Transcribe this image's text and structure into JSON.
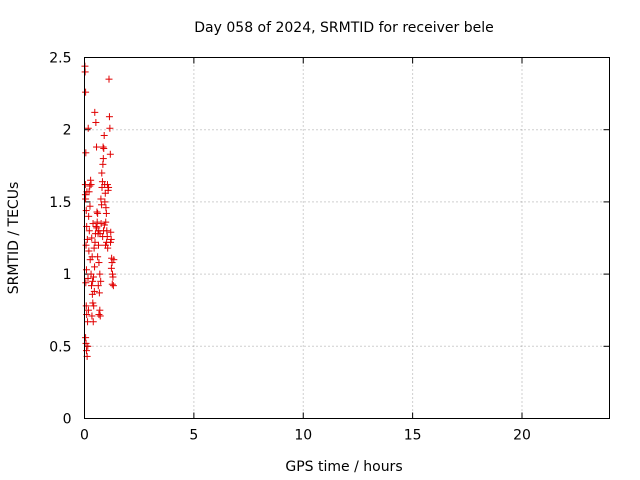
{
  "chart_data": {
    "type": "scatter",
    "title": "Day 058 of 2024, SRMTID for receiver bele",
    "xlabel": "GPS time / hours",
    "ylabel": "SRMTID / TECUs",
    "xlim": [
      0,
      24
    ],
    "ylim": [
      0,
      2.5
    ],
    "xticks": [
      0,
      5,
      10,
      15,
      20
    ],
    "yticks": [
      0,
      0.5,
      1,
      1.5,
      2,
      2.5
    ],
    "xtick_labels": [
      "0",
      "5",
      "10",
      "15",
      "20"
    ],
    "ytick_labels": [
      "0",
      "0.5",
      "1",
      "1.5",
      "2",
      "2.5"
    ],
    "grid": true,
    "marker": "+",
    "color": "#e00000",
    "series": [
      {
        "points": [
          [
            0.02,
            2.44
          ],
          [
            0.03,
            2.4
          ],
          [
            0.05,
            2.26
          ],
          [
            0.06,
            1.84
          ],
          [
            0.04,
            1.55
          ],
          [
            0.05,
            1.52
          ],
          [
            0.08,
            1.44
          ],
          [
            0.1,
            1.33
          ],
          [
            0.07,
            1.2
          ],
          [
            0.09,
            1.03
          ],
          [
            0.06,
            0.94
          ],
          [
            0.08,
            0.78
          ],
          [
            0.1,
            0.72
          ],
          [
            0.05,
            0.56
          ],
          [
            0.07,
            0.52
          ],
          [
            0.09,
            0.47
          ],
          [
            0.12,
            0.43
          ],
          [
            0.15,
            0.5
          ],
          [
            0.14,
            0.67
          ],
          [
            0.18,
            0.75
          ],
          [
            0.16,
            0.97
          ],
          [
            0.2,
            1.16
          ],
          [
            0.22,
            1.3
          ],
          [
            0.19,
            1.4
          ],
          [
            0.25,
            1.47
          ],
          [
            0.21,
            1.57
          ],
          [
            0.24,
            1.61
          ],
          [
            0.28,
            1.65
          ],
          [
            0.17,
            2.01
          ],
          [
            0.3,
            1.62
          ],
          [
            0.33,
            1.25
          ],
          [
            0.35,
            1.12
          ],
          [
            0.3,
            1.0
          ],
          [
            0.32,
            0.92
          ],
          [
            0.36,
            0.86
          ],
          [
            0.38,
            0.8
          ],
          [
            0.34,
            0.71
          ],
          [
            0.4,
            0.67
          ],
          [
            0.42,
            0.78
          ],
          [
            0.45,
            0.88
          ],
          [
            0.41,
            0.98
          ],
          [
            0.46,
            1.05
          ],
          [
            0.44,
            1.18
          ],
          [
            0.48,
            1.22
          ],
          [
            0.5,
            1.28
          ],
          [
            0.47,
            2.12
          ],
          [
            0.52,
            2.05
          ],
          [
            0.55,
            1.88
          ],
          [
            0.58,
            1.36
          ],
          [
            0.6,
            1.42
          ],
          [
            0.56,
            1.32
          ],
          [
            0.62,
            1.28
          ],
          [
            0.64,
            1.2
          ],
          [
            0.6,
            1.12
          ],
          [
            0.66,
            1.08
          ],
          [
            0.63,
            0.92
          ],
          [
            0.68,
            0.87
          ],
          [
            0.7,
            0.75
          ],
          [
            0.66,
            0.72
          ],
          [
            0.72,
            0.71
          ],
          [
            0.74,
            0.95
          ],
          [
            0.7,
            1.0
          ],
          [
            0.76,
            1.35
          ],
          [
            0.78,
            1.48
          ],
          [
            0.75,
            1.52
          ],
          [
            0.8,
            1.6
          ],
          [
            0.82,
            1.64
          ],
          [
            0.79,
            1.7
          ],
          [
            0.84,
            1.76
          ],
          [
            0.86,
            1.8
          ],
          [
            0.88,
            1.87
          ],
          [
            0.85,
            1.88
          ],
          [
            0.9,
            1.96
          ],
          [
            0.92,
            1.62
          ],
          [
            0.95,
            1.56
          ],
          [
            0.93,
            1.5
          ],
          [
            0.98,
            1.46
          ],
          [
            1.0,
            1.42
          ],
          [
            0.97,
            1.36
          ],
          [
            1.02,
            1.3
          ],
          [
            1.04,
            1.26
          ],
          [
            1.01,
            1.22
          ],
          [
            1.06,
            1.18
          ],
          [
            1.08,
            1.58
          ],
          [
            1.05,
            1.62
          ],
          [
            1.1,
            1.6
          ],
          [
            1.12,
            2.35
          ],
          [
            1.14,
            2.09
          ],
          [
            1.16,
            2.01
          ],
          [
            1.18,
            1.83
          ],
          [
            1.2,
            1.29
          ],
          [
            1.22,
            1.24
          ],
          [
            1.19,
            1.22
          ],
          [
            1.24,
            1.11
          ],
          [
            1.26,
            1.08
          ],
          [
            1.23,
            1.04
          ],
          [
            1.28,
            1.0
          ],
          [
            1.3,
            0.98
          ],
          [
            1.27,
            0.93
          ],
          [
            1.32,
            0.92
          ],
          [
            1.34,
            1.1
          ],
          [
            0.04,
            1.62
          ],
          [
            0.11,
            1.57
          ],
          [
            0.13,
            1.24
          ],
          [
            0.26,
            1.1
          ],
          [
            0.37,
            0.95
          ],
          [
            0.39,
            1.35
          ],
          [
            0.53,
            1.33
          ],
          [
            0.57,
            1.43
          ],
          [
            0.65,
            1.3
          ],
          [
            0.71,
            1.28
          ],
          [
            0.83,
            1.26
          ],
          [
            0.87,
            1.3
          ],
          [
            0.91,
            1.34
          ],
          [
            0.96,
            1.2
          ]
        ]
      }
    ]
  }
}
